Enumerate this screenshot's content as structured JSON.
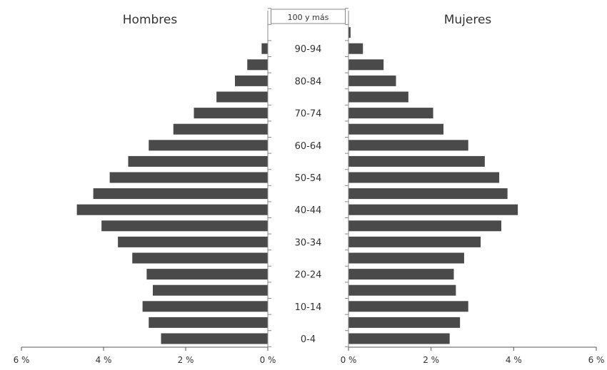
{
  "chart_data": {
    "type": "bar",
    "orientation": "horizontal",
    "layout": "population-pyramid",
    "left_title": "Hombres",
    "right_title": "Mujeres",
    "top_label": "100 y más",
    "categories": [
      "0-4",
      "5-9",
      "10-14",
      "15-19",
      "20-24",
      "25-29",
      "30-34",
      "35-39",
      "40-44",
      "45-49",
      "50-54",
      "55-59",
      "60-64",
      "65-69",
      "70-74",
      "75-79",
      "80-84",
      "85-89",
      "90-94",
      "95-99",
      "100 y más"
    ],
    "visible_category_labels": [
      "0-4",
      "10-14",
      "20-24",
      "30-34",
      "40-44",
      "50-54",
      "60-64",
      "70-74",
      "80-84",
      "90-94",
      "100 y más"
    ],
    "series": [
      {
        "name": "Hombres",
        "side": "left",
        "values": [
          2.6,
          2.9,
          3.05,
          2.8,
          2.95,
          3.3,
          3.65,
          4.05,
          4.65,
          4.25,
          3.85,
          3.4,
          2.9,
          2.3,
          1.8,
          1.25,
          0.8,
          0.5,
          0.15,
          0.0,
          0.0
        ]
      },
      {
        "name": "Mujeres",
        "side": "right",
        "values": [
          2.45,
          2.7,
          2.9,
          2.6,
          2.55,
          2.8,
          3.2,
          3.7,
          4.1,
          3.85,
          3.65,
          3.3,
          2.9,
          2.3,
          2.05,
          1.45,
          1.15,
          0.85,
          0.35,
          0.05,
          0.0
        ]
      }
    ],
    "x_axis": {
      "ticks_left": [
        "6 %",
        "4 %",
        "2 %",
        "0 %"
      ],
      "ticks_right": [
        "0 %",
        "2 %",
        "4 %",
        "6 %"
      ],
      "xlim": [
        0,
        6
      ],
      "unit": "%"
    },
    "bar_color": "#4a4a4a",
    "grid": false
  }
}
